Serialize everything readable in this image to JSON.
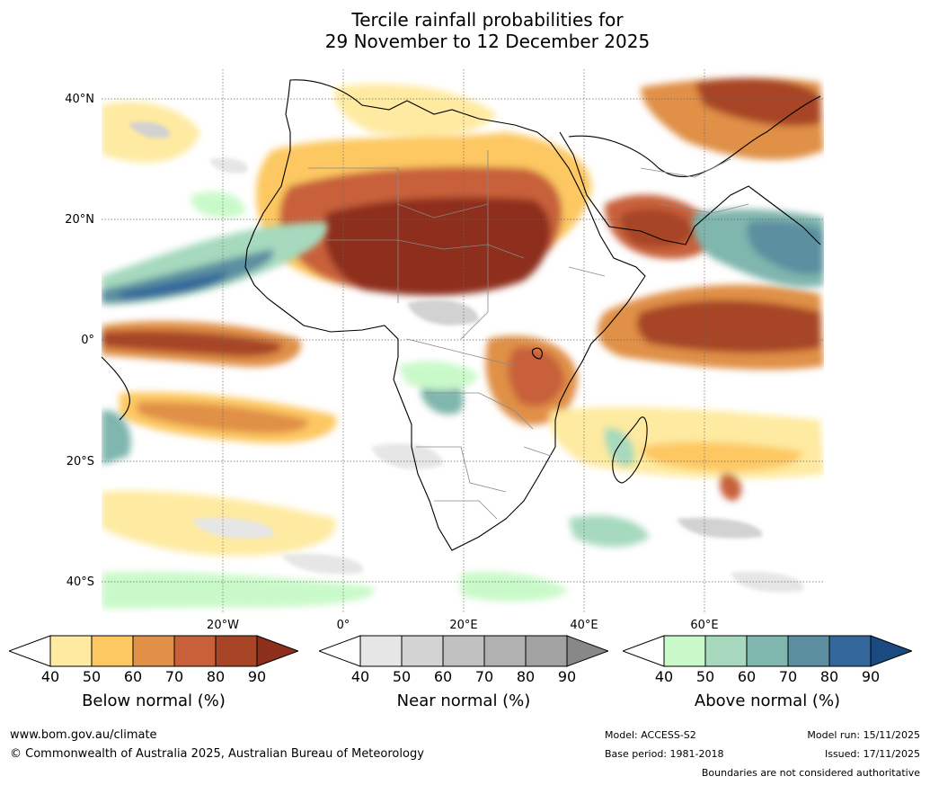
{
  "title": {
    "line1": "Tercile rainfall probabilities for",
    "line2": "29 November to 12 December 2025"
  },
  "map": {
    "region": "Africa",
    "lat_labels": [
      "40°N",
      "20°N",
      "0°",
      "20°S",
      "40°S"
    ],
    "lon_labels": [
      "20°W",
      "0°",
      "20°E",
      "40°E",
      "60°E"
    ]
  },
  "colorbars": [
    {
      "label": "Below normal (%)",
      "ticks": [
        "40",
        "50",
        "60",
        "70",
        "80",
        "90"
      ],
      "colors": [
        "#ffffff",
        "#feeaa0",
        "#fdc862",
        "#e09047",
        "#c8603a",
        "#a84527",
        "#8e2f1c"
      ]
    },
    {
      "label": "Near normal (%)",
      "ticks": [
        "40",
        "50",
        "60",
        "70",
        "80",
        "90"
      ],
      "colors": [
        "#ffffff",
        "#e6e6e6",
        "#d2d2d2",
        "#c0c0c0",
        "#b1b1b1",
        "#a2a2a2",
        "#888888"
      ]
    },
    {
      "label": "Above normal (%)",
      "ticks": [
        "40",
        "50",
        "60",
        "70",
        "80",
        "90"
      ],
      "colors": [
        "#ffffff",
        "#c9f9c9",
        "#a6d9bd",
        "#7fb6ad",
        "#5b8fa0",
        "#33679b",
        "#1a4a80"
      ]
    }
  ],
  "footer": {
    "website": "www.bom.gov.au/climate",
    "copyright": "© Commonwealth of Australia 2025, Australian Bureau of Meteorology",
    "model": "Model: ACCESS-S2",
    "base_period": "Base period: 1981-2018",
    "model_run": "Model run: 15/11/2025",
    "issued": "Issued: 17/11/2025",
    "disclaimer": "Boundaries are not considered authoritative"
  }
}
